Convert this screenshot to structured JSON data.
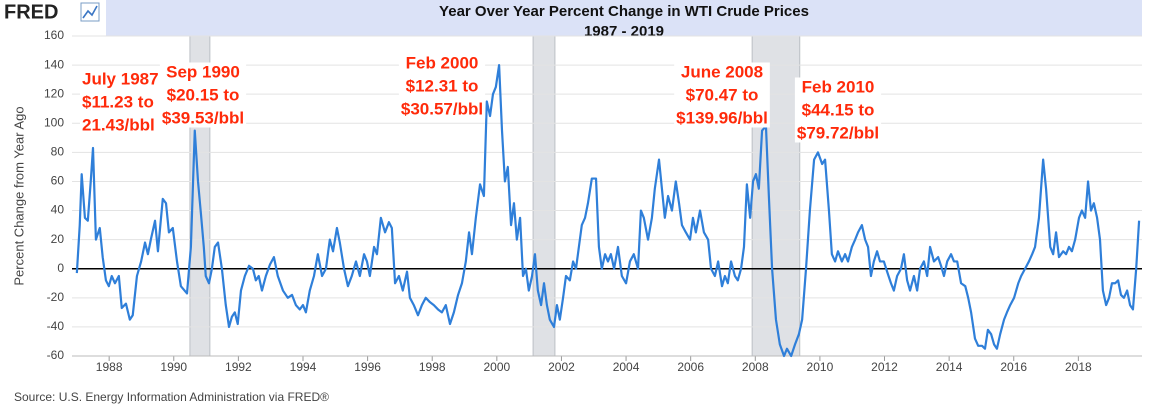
{
  "chart_data": {
    "type": "line",
    "logo": "FRED",
    "title": "Year Over Year Percent Change in WTI Crude Prices",
    "subtitle": "1987 - 2019",
    "y_label": "Percent Change from Year Ago",
    "source": "Source: U.S. Energy Information Administration via FRED®",
    "color": "#2f7fd9",
    "grid": true,
    "zero_line": true,
    "xlim": [
      1986.85,
      2019.97
    ],
    "xticks": [
      1988,
      1990,
      1992,
      1994,
      1996,
      1998,
      2000,
      2002,
      2004,
      2006,
      2008,
      2010,
      2012,
      2014,
      2016,
      2018
    ],
    "ylim": [
      -60,
      160
    ],
    "yticks": [
      -60,
      -40,
      -20,
      0,
      20,
      40,
      60,
      80,
      100,
      120,
      140,
      160
    ],
    "recessions": [
      [
        1990.5,
        1991.12
      ],
      [
        2001.12,
        2001.8
      ],
      [
        2007.9,
        2009.38
      ]
    ],
    "annotations": [
      [
        "July 1987",
        "$11.23 to",
        "21.43/bbl"
      ],
      [
        "Sep 1990",
        "$20.15 to",
        "$39.53/bbl"
      ],
      [
        "Feb 2000",
        "$12.31 to",
        "$30.57/bbl"
      ],
      [
        "June 2008",
        "$70.47 to",
        "$139.96/bbl"
      ],
      [
        "Feb 2010",
        "$44.15 to",
        "$79.72/bbl"
      ]
    ],
    "x": [
      1987.0,
      1987.09,
      1987.15,
      1987.25,
      1987.34,
      1987.43,
      1987.5,
      1987.59,
      1987.71,
      1987.8,
      1987.9,
      1987.99,
      1988.08,
      1988.18,
      1988.3,
      1988.39,
      1988.52,
      1988.64,
      1988.73,
      1988.86,
      1988.99,
      1989.11,
      1989.2,
      1989.29,
      1989.42,
      1989.51,
      1989.66,
      1989.76,
      1989.85,
      1989.97,
      1990.1,
      1990.22,
      1990.41,
      1990.53,
      1990.59,
      1990.65,
      1990.75,
      1990.84,
      1990.93,
      1990.99,
      1991.09,
      1991.18,
      1991.27,
      1991.37,
      1991.49,
      1991.61,
      1991.71,
      1991.8,
      1991.89,
      1991.98,
      1992.08,
      1992.2,
      1992.33,
      1992.45,
      1992.54,
      1992.63,
      1992.73,
      1992.85,
      1992.98,
      1993.1,
      1993.22,
      1993.38,
      1993.53,
      1993.66,
      1993.78,
      1993.9,
      1994.0,
      1994.09,
      1994.21,
      1994.34,
      1994.46,
      1994.59,
      1994.71,
      1994.83,
      1994.93,
      1995.05,
      1995.14,
      1995.27,
      1995.39,
      1995.51,
      1995.64,
      1995.76,
      1995.89,
      1995.98,
      1996.07,
      1996.2,
      1996.29,
      1996.41,
      1996.54,
      1996.66,
      1996.75,
      1996.85,
      1996.97,
      1997.09,
      1997.22,
      1997.31,
      1997.43,
      1997.56,
      1997.68,
      1997.8,
      1997.93,
      1998.05,
      1998.18,
      1998.3,
      1998.42,
      1998.55,
      1998.67,
      1998.8,
      1998.92,
      1999.04,
      1999.14,
      1999.23,
      1999.35,
      1999.48,
      1999.6,
      1999.69,
      1999.79,
      1999.88,
      1999.97,
      2000.07,
      2000.16,
      2000.25,
      2000.34,
      2000.44,
      2000.53,
      2000.62,
      2000.72,
      2000.81,
      2000.9,
      2000.99,
      2001.09,
      2001.18,
      2001.27,
      2001.37,
      2001.46,
      2001.55,
      2001.64,
      2001.77,
      2001.86,
      2001.95,
      2002.05,
      2002.14,
      2002.26,
      2002.36,
      2002.45,
      2002.54,
      2002.63,
      2002.73,
      2002.82,
      2002.94,
      2003.07,
      2003.16,
      2003.25,
      2003.35,
      2003.44,
      2003.53,
      2003.63,
      2003.75,
      2003.87,
      2004.0,
      2004.12,
      2004.24,
      2004.37,
      2004.46,
      2004.55,
      2004.68,
      2004.8,
      2004.89,
      2005.02,
      2005.11,
      2005.2,
      2005.3,
      2005.42,
      2005.54,
      2005.64,
      2005.73,
      2005.85,
      2005.98,
      2006.07,
      2006.16,
      2006.29,
      2006.41,
      2006.54,
      2006.63,
      2006.75,
      2006.85,
      2006.97,
      2007.06,
      2007.15,
      2007.25,
      2007.37,
      2007.46,
      2007.56,
      2007.65,
      2007.74,
      2007.84,
      2007.93,
      2008.02,
      2008.11,
      2008.21,
      2008.33,
      2008.42,
      2008.52,
      2008.64,
      2008.76,
      2008.89,
      2008.98,
      2009.11,
      2009.23,
      2009.35,
      2009.45,
      2009.57,
      2009.69,
      2009.82,
      2009.94,
      2010.07,
      2010.16,
      2010.28,
      2010.37,
      2010.47,
      2010.56,
      2010.68,
      2010.78,
      2010.87,
      2010.99,
      2011.09,
      2011.18,
      2011.3,
      2011.4,
      2011.49,
      2011.58,
      2011.67,
      2011.77,
      2011.86,
      2011.98,
      2012.08,
      2012.2,
      2012.29,
      2012.39,
      2012.51,
      2012.6,
      2012.7,
      2012.79,
      2012.91,
      2013.01,
      2013.1,
      2013.22,
      2013.32,
      2013.41,
      2013.53,
      2013.66,
      2013.75,
      2013.84,
      2013.94,
      2014.06,
      2014.15,
      2014.25,
      2014.37,
      2014.5,
      2014.59,
      2014.68,
      2014.8,
      2014.9,
      2015.02,
      2015.11,
      2015.2,
      2015.3,
      2015.39,
      2015.48,
      2015.58,
      2015.7,
      2015.79,
      2015.89,
      2016.01,
      2016.14,
      2016.23,
      2016.35,
      2016.47,
      2016.57,
      2016.66,
      2016.78,
      2016.91,
      2017.0,
      2017.13,
      2017.22,
      2017.31,
      2017.4,
      2017.53,
      2017.62,
      2017.71,
      2017.8,
      2017.9,
      2018.02,
      2018.11,
      2018.21,
      2018.3,
      2018.39,
      2018.48,
      2018.58,
      2018.67,
      2018.76,
      2018.86,
      2018.95,
      2019.04,
      2019.14,
      2019.23,
      2019.32,
      2019.41,
      2019.51,
      2019.6,
      2019.69,
      2019.79,
      2019.88
    ],
    "values": [
      -3,
      30,
      65,
      35,
      33,
      60,
      83,
      20,
      28,
      8,
      -8,
      -12,
      -5,
      -10,
      -5,
      -27,
      -24,
      -35,
      -32,
      -5,
      5,
      18,
      10,
      20,
      33,
      12,
      48,
      45,
      25,
      28,
      5,
      -12,
      -17,
      15,
      55,
      95,
      60,
      38,
      15,
      -5,
      -10,
      0,
      15,
      18,
      0,
      -25,
      -40,
      -33,
      -30,
      -38,
      -15,
      -5,
      2,
      0,
      -8,
      -5,
      -15,
      -5,
      3,
      8,
      -5,
      -15,
      -20,
      -18,
      -25,
      -28,
      -25,
      -30,
      -15,
      -5,
      10,
      -5,
      0,
      20,
      12,
      28,
      18,
      0,
      -12,
      -5,
      5,
      -5,
      10,
      5,
      -5,
      15,
      10,
      35,
      25,
      32,
      28,
      -10,
      -5,
      -15,
      -2,
      -20,
      -25,
      -32,
      -25,
      -20,
      -23,
      -25,
      -28,
      -30,
      -25,
      -38,
      -30,
      -18,
      -10,
      5,
      25,
      10,
      35,
      58,
      50,
      115,
      105,
      120,
      125,
      140,
      95,
      60,
      70,
      30,
      45,
      20,
      35,
      -5,
      0,
      -15,
      -5,
      10,
      -15,
      -25,
      -10,
      -25,
      -35,
      -40,
      -25,
      -35,
      -20,
      -5,
      -8,
      5,
      0,
      15,
      30,
      35,
      45,
      62,
      62,
      15,
      0,
      10,
      5,
      10,
      0,
      15,
      -5,
      -10,
      5,
      10,
      0,
      40,
      35,
      20,
      35,
      55,
      75,
      55,
      35,
      50,
      40,
      60,
      45,
      30,
      25,
      20,
      35,
      25,
      40,
      25,
      20,
      0,
      -5,
      5,
      -12,
      -5,
      -10,
      5,
      -5,
      -8,
      0,
      15,
      58,
      35,
      60,
      65,
      55,
      95,
      98,
      50,
      0,
      -35,
      -52,
      -60,
      -55,
      -60,
      -52,
      -45,
      -35,
      0,
      40,
      75,
      80,
      72,
      75,
      40,
      10,
      5,
      12,
      5,
      10,
      5,
      15,
      20,
      25,
      30,
      20,
      15,
      -5,
      5,
      12,
      5,
      5,
      -2,
      -10,
      -15,
      -5,
      0,
      10,
      -8,
      -15,
      -5,
      -15,
      0,
      5,
      -5,
      15,
      5,
      8,
      2,
      -5,
      5,
      10,
      5,
      5,
      -10,
      -12,
      -20,
      -30,
      -48,
      -53,
      -53,
      -55,
      -42,
      -45,
      -52,
      -55,
      -45,
      -35,
      -30,
      -25,
      -20,
      -10,
      -5,
      0,
      5,
      10,
      15,
      35,
      75,
      55,
      15,
      10,
      25,
      8,
      12,
      10,
      15,
      12,
      20,
      35,
      40,
      35,
      60,
      40,
      45,
      35,
      20,
      -15,
      -25,
      -20,
      -10,
      -10,
      -8,
      -18,
      -20,
      -15,
      -25,
      -28,
      0,
      33
    ]
  }
}
